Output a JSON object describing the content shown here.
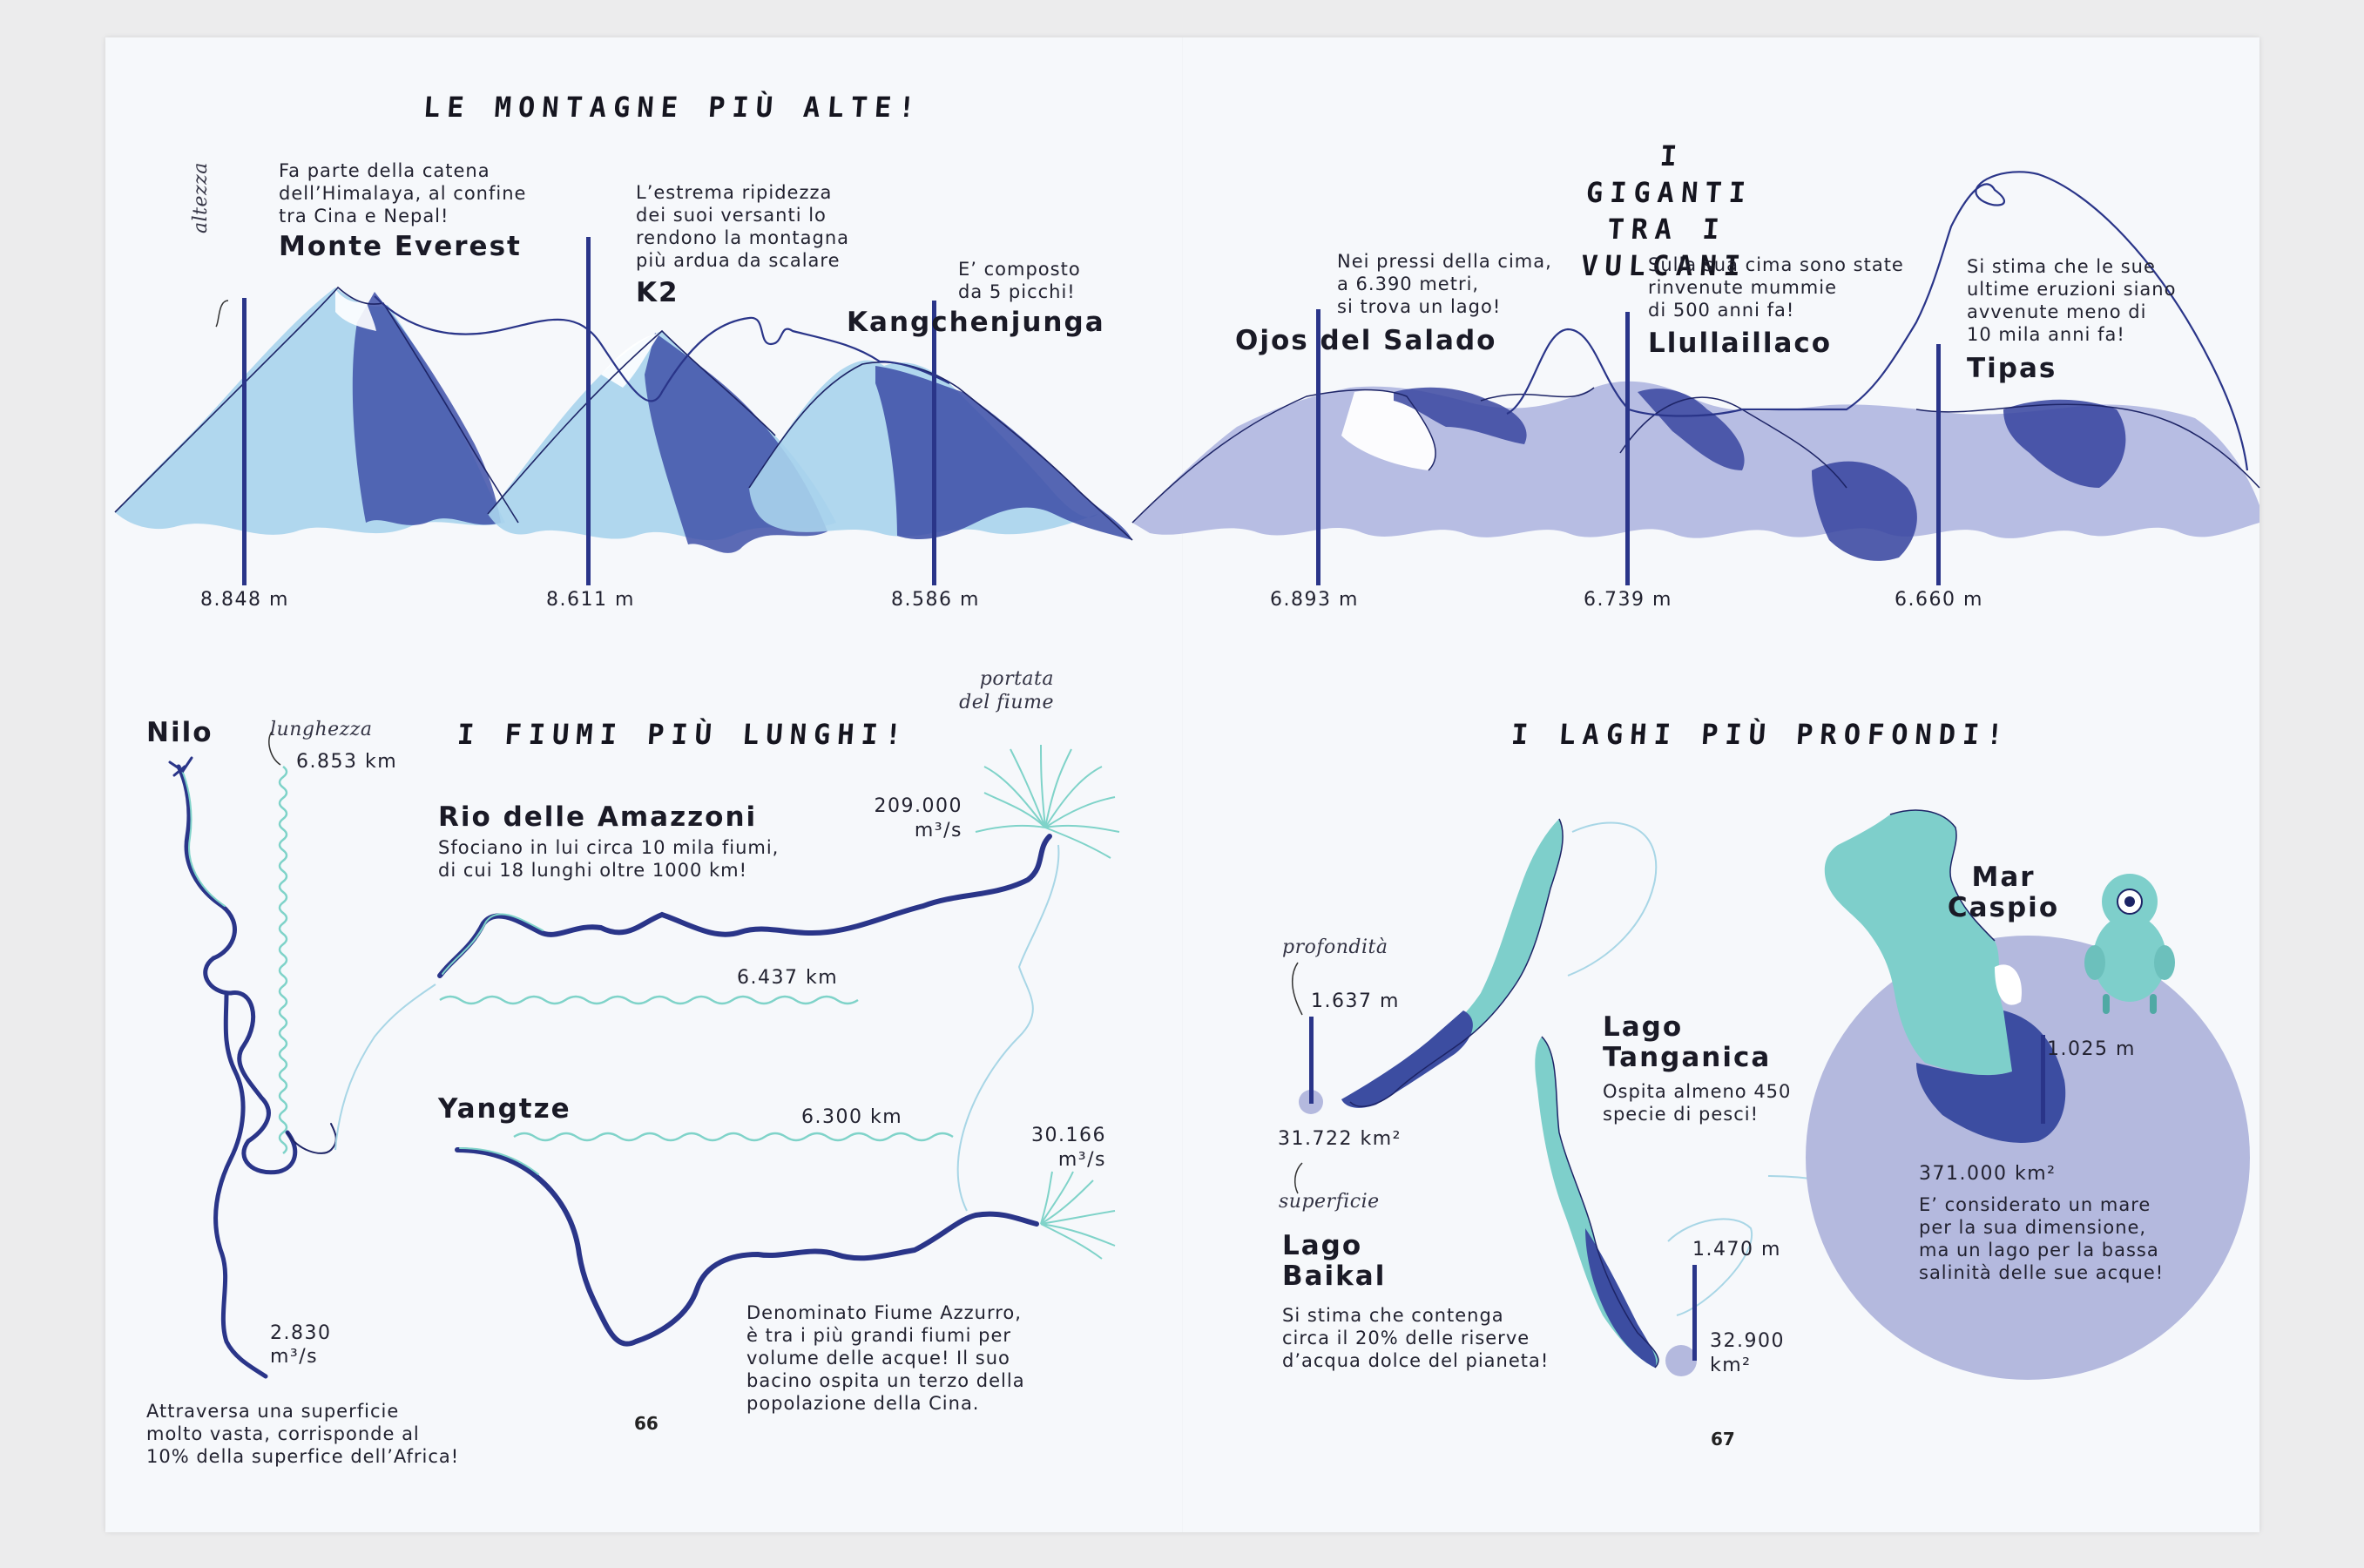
{
  "colors": {
    "navy": "#2a3589",
    "mountain_light": "#a9d3ec",
    "mountain_dark": "#3f51a8",
    "volcano_light": "#b3b9e2",
    "volcano_dark": "#3a47a0",
    "lake_teal": "#7ecfcb",
    "lake_blue": "#3c4da1",
    "caspian_circle": "#b4b9de",
    "river_accent": "#7fd3c9",
    "link_line": "#a8d6e6"
  },
  "icons": {
    "mascot": "teal-creature-icon",
    "river_mouth": "delta-fan-icon"
  },
  "sections": {
    "mountains_title": "LE MONTAGNE PIÙ ALTE!",
    "volcanoes_title": "I GIGANTI\nTRA I VULCANI",
    "rivers_title": "I FIUMI PIÙ LUNGHI!",
    "lakes_title": "I LAGHI PIÙ PROFONDI!"
  },
  "axis_labels": {
    "altezza": "altezza",
    "lunghezza": "lunghezza",
    "portata": "portata\ndel fiume",
    "profondita": "profondità",
    "superficie": "superficie"
  },
  "mountains": [
    {
      "name": "Monte Everest",
      "height_m": 8848,
      "label": "8.848 m",
      "desc": "Fa parte della catena\ndell’Himalaya, al confine\ntra Cina e Nepal!"
    },
    {
      "name": "K2",
      "height_m": 8611,
      "label": "8.611 m",
      "desc": "L’estrema ripidezza\ndei suoi versanti lo\nrendono la montagna\npiù ardua da scalare"
    },
    {
      "name": "Kangchenjunga",
      "height_m": 8586,
      "label": "8.586 m",
      "desc": "E’ composto\nda 5 picchi!"
    }
  ],
  "volcanoes": [
    {
      "name": "Ojos del Salado",
      "height_m": 6893,
      "label": "6.893 m",
      "desc": "Nei pressi della cima,\na 6.390 metri,\nsi trova un lago!"
    },
    {
      "name": "Llullaillaco",
      "height_m": 6739,
      "label": "6.739 m",
      "desc": "Sulla sua cima sono state\nrinvenute mummie\ndi 500 anni fa!"
    },
    {
      "name": "Tipas",
      "height_m": 6660,
      "label": "6.660 m",
      "desc": "Si stima che le sue\nultime eruzioni siano\navvenute meno di\n10 mila anni fa!"
    }
  ],
  "rivers": [
    {
      "name": "Nilo",
      "length": "6.853 km",
      "flow": "2.830\nm³/s",
      "desc": "Attraversa una superficie\nmolto vasta, corrisponde al\n10% della superfice dell’Africa!"
    },
    {
      "name": "Rio delle Amazzoni",
      "length": "6.437 km",
      "flow": "209.000\nm³/s",
      "desc": "Sfociano in lui circa 10 mila fiumi,\ndi cui 18 lunghi oltre 1000 km!"
    },
    {
      "name": "Yangtze",
      "length": "6.300 km",
      "flow": "30.166\nm³/s",
      "desc": "Denominato Fiume Azzurro,\nè tra i più grandi fiumi per\nvolume delle acque! Il suo\nbacino ospita un terzo della\npopolazione della Cina."
    }
  ],
  "lakes": [
    {
      "name": "Lago\nBaikal",
      "depth": "1.637 m",
      "area": "31.722 km²",
      "desc": "Si stima che contenga\ncirca il 20% delle riserve\nd’acqua dolce del pianeta!"
    },
    {
      "name": "Lago\nTanganica",
      "depth": "1.470 m",
      "area": "32.900\nkm²",
      "desc": "Ospita almeno 450\nspecie di pesci!"
    },
    {
      "name": "Mar\nCaspio",
      "depth": "1.025 m",
      "area": "371.000 km²",
      "desc": "E’ considerato un mare\nper la sua dimensione,\nma un lago per la bassa\nsalinità delle sue acque!"
    }
  ],
  "pages": {
    "left": "66",
    "right": "67"
  }
}
